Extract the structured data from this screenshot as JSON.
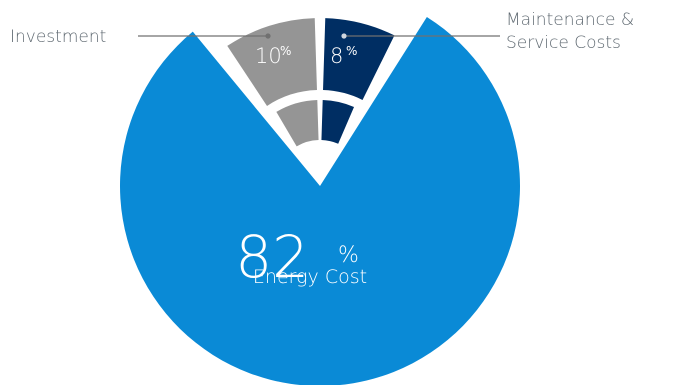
{
  "chart_data": {
    "type": "pie",
    "title": "",
    "slices": [
      {
        "label": "Energy Cost",
        "value": 82,
        "display": "82",
        "unit": "%",
        "color": "#0a8ad6"
      },
      {
        "label": "Investment",
        "value": 10,
        "display": "10",
        "unit": "%",
        "color": "#959595"
      },
      {
        "label": "Maintenance & Service Costs",
        "label_lines": [
          "Maintenance &",
          "Service Costs"
        ],
        "value": 8,
        "display": "8",
        "unit": "%",
        "color": "#002e63"
      }
    ],
    "legend": "callouts",
    "line_color": "#707070"
  }
}
